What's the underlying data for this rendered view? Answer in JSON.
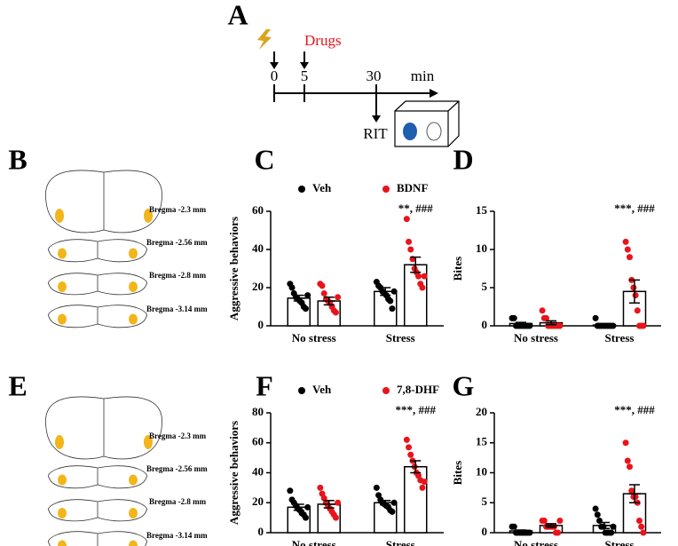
{
  "timeline": {
    "label": "A",
    "drug": "Drugs",
    "times": [
      "0",
      "5",
      "30"
    ],
    "unit": "min",
    "test": "RIT"
  },
  "panel_B": {
    "label": "B",
    "sections": [
      "Bregma -2.3 mm",
      "Bregma -2.56 mm",
      "Bregma -2.8 mm",
      "Bregma -3.14 mm"
    ]
  },
  "panel_E": {
    "label": "E",
    "sections": [
      "Bregma -2.3 mm",
      "Bregma -2.56 mm",
      "Bregma -2.8 mm",
      "Bregma -3.14 mm"
    ]
  },
  "chart_data": [
    {
      "type": "bar",
      "panel": "C",
      "y_label": "Aggressive behaviors",
      "categories": [
        "No stress",
        "Stress"
      ],
      "ylim": [
        0,
        60
      ],
      "yticks": [
        0,
        20,
        40,
        60
      ],
      "annotation": "**, ###",
      "series": [
        {
          "name": "Veh",
          "color": "#000000",
          "values": [
            14.5,
            18
          ],
          "errors": [
            1.5,
            2
          ],
          "points": [
            [
              22,
              20,
              17,
              15,
              14,
              13,
              12,
              10,
              9,
              16
            ],
            [
              23,
              21,
              20,
              18,
              17,
              16,
              14,
              13,
              9,
              18
            ]
          ]
        },
        {
          "name": "BDNF",
          "color": "#e8141c",
          "values": [
            13,
            32
          ],
          "errors": [
            2,
            4
          ],
          "points": [
            [
              22,
              21,
              17,
              14,
              13,
              12,
              10,
              8,
              7,
              15
            ],
            [
              56,
              44,
              40,
              35,
              30,
              28,
              26,
              22,
              20,
              26
            ]
          ]
        }
      ]
    },
    {
      "type": "bar",
      "panel": "D",
      "y_label": "Bites",
      "categories": [
        "No stress",
        "Stress"
      ],
      "ylim": [
        0,
        15
      ],
      "yticks": [
        0,
        5,
        10,
        15
      ],
      "annotation": "***, ###",
      "series": [
        {
          "color": "#000000",
          "values": [
            0.3,
            0.1
          ],
          "errors": [
            0.15,
            0.1
          ],
          "points": [
            [
              1,
              1,
              0,
              0,
              0,
              0,
              0,
              0,
              0,
              0
            ],
            [
              1,
              0,
              0,
              0,
              0,
              0,
              0,
              0,
              0,
              0
            ]
          ]
        },
        {
          "color": "#e8141c",
          "values": [
            0.4,
            4.5
          ],
          "errors": [
            0.25,
            1.5
          ],
          "points": [
            [
              2,
              1,
              1,
              0,
              0,
              0,
              0,
              0,
              0,
              0
            ],
            [
              11,
              10,
              9,
              6,
              5,
              4,
              2,
              0,
              0,
              0
            ]
          ]
        }
      ]
    },
    {
      "type": "bar",
      "panel": "F",
      "y_label": "Aggressive behaviors",
      "categories": [
        "No stress",
        "Stress"
      ],
      "ylim": [
        0,
        80
      ],
      "yticks": [
        0,
        20,
        40,
        60,
        80
      ],
      "annotation": "***, ###",
      "series": [
        {
          "name": "Veh",
          "color": "#000000",
          "values": [
            17,
            20
          ],
          "errors": [
            2,
            1.5
          ],
          "points": [
            [
              28,
              22,
              20,
              18,
              16,
              15,
              13,
              12,
              10,
              17
            ],
            [
              30,
              25,
              22,
              20,
              19,
              18,
              17,
              15,
              14,
              20
            ]
          ]
        },
        {
          "name": "7,8-DHF",
          "color": "#e8141c",
          "values": [
            19,
            44
          ],
          "errors": [
            2.5,
            4
          ],
          "points": [
            [
              30,
              26,
              23,
              20,
              18,
              16,
              14,
              12,
              10,
              20
            ],
            [
              62,
              57,
              52,
              48,
              44,
              40,
              38,
              35,
              30,
              34
            ]
          ]
        }
      ]
    },
    {
      "type": "bar",
      "panel": "G",
      "y_label": "Bites",
      "categories": [
        "No stress",
        "Stress"
      ],
      "ylim": [
        0,
        20
      ],
      "yticks": [
        0,
        5,
        10,
        15,
        20
      ],
      "annotation": "***, ###",
      "series": [
        {
          "color": "#000000",
          "values": [
            0.3,
            1.2
          ],
          "errors": [
            0.15,
            0.5
          ],
          "points": [
            [
              1,
              1,
              0,
              0,
              0,
              0,
              0,
              0,
              0,
              0
            ],
            [
              4,
              3,
              2,
              1,
              1,
              0,
              0,
              0,
              0,
              1
            ]
          ]
        },
        {
          "color": "#e8141c",
          "values": [
            1.2,
            6.5
          ],
          "errors": [
            0.3,
            1.5
          ],
          "points": [
            [
              2,
              2,
              1,
              1,
              1,
              1,
              1,
              0,
              0,
              2
            ],
            [
              15,
              12,
              11,
              7,
              6,
              6,
              5,
              2,
              1,
              0
            ]
          ]
        }
      ]
    }
  ]
}
